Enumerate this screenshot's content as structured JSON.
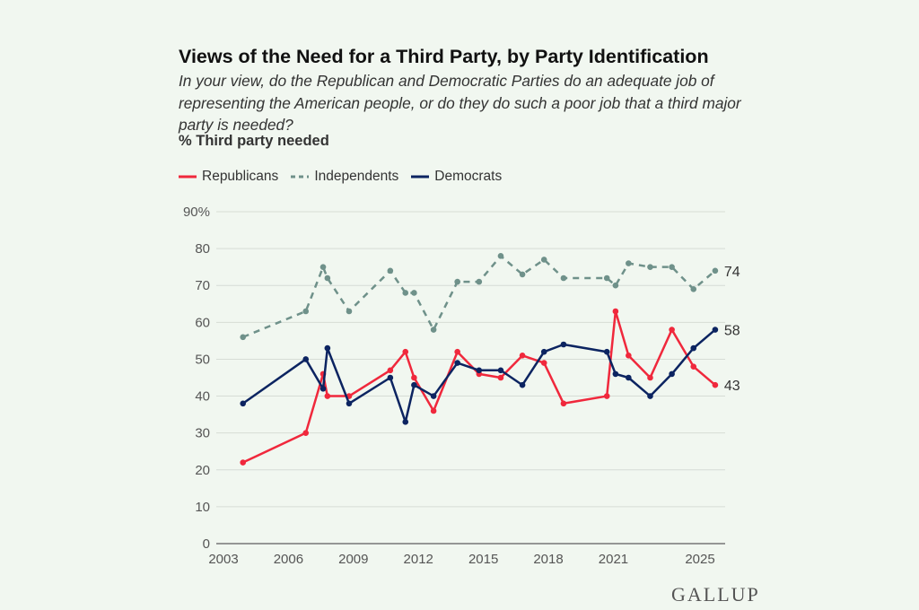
{
  "chart_data": {
    "type": "line",
    "title": "Views of the Need for a Third Party, by Party Identification",
    "subtitle": "In your view, do the Republican and Democratic Parties do an adequate job of representing the American people, or do they do such a poor job that a third major party is needed?",
    "ylabel": "% Third party needed",
    "xlabel": "",
    "ylim": [
      0,
      90
    ],
    "xlim": [
      2003,
      2026
    ],
    "yticks": [
      "0",
      "10",
      "20",
      "30",
      "40",
      "50",
      "60",
      "70",
      "80",
      "90%"
    ],
    "ytick_values": [
      0,
      10,
      20,
      30,
      40,
      50,
      60,
      70,
      80,
      90
    ],
    "xticks": [
      "2003",
      "2006",
      "2009",
      "2012",
      "2015",
      "2018",
      "2021",
      "2025"
    ],
    "xtick_values": [
      2003,
      2006,
      2009,
      2012,
      2015,
      2018,
      2021,
      2025
    ],
    "grid": "horizontal",
    "legend": "top-left",
    "x": [
      2003.9,
      2006.8,
      2007.6,
      2007.8,
      2008.8,
      2010.7,
      2011.4,
      2011.8,
      2012.7,
      2013.8,
      2014.8,
      2015.8,
      2016.8,
      2017.8,
      2018.7,
      2020.7,
      2021.1,
      2021.7,
      2022.7,
      2023.7,
      2024.7,
      2025.7
    ],
    "series": [
      {
        "name": "Republicans",
        "color": "#f0283c",
        "style": "solid",
        "end_label": "43",
        "values": [
          22,
          30,
          46,
          40,
          40,
          47,
          52,
          45,
          36,
          52,
          46,
          45,
          51,
          49,
          38,
          40,
          63,
          51,
          45,
          58,
          48,
          43
        ]
      },
      {
        "name": "Independents",
        "color": "#6f918a",
        "style": "dashed",
        "end_label": "74",
        "values": [
          56,
          63,
          75,
          72,
          63,
          74,
          68,
          68,
          58,
          71,
          71,
          78,
          73,
          77,
          72,
          72,
          70,
          76,
          75,
          75,
          69,
          74
        ]
      },
      {
        "name": "Democrats",
        "color": "#0c2461",
        "style": "solid",
        "end_label": "58",
        "values": [
          38,
          50,
          42,
          53,
          38,
          45,
          33,
          43,
          40,
          49,
          47,
          47,
          43,
          52,
          54,
          52,
          46,
          45,
          40,
          46,
          53,
          58
        ]
      }
    ]
  },
  "logo": "GALLUP"
}
